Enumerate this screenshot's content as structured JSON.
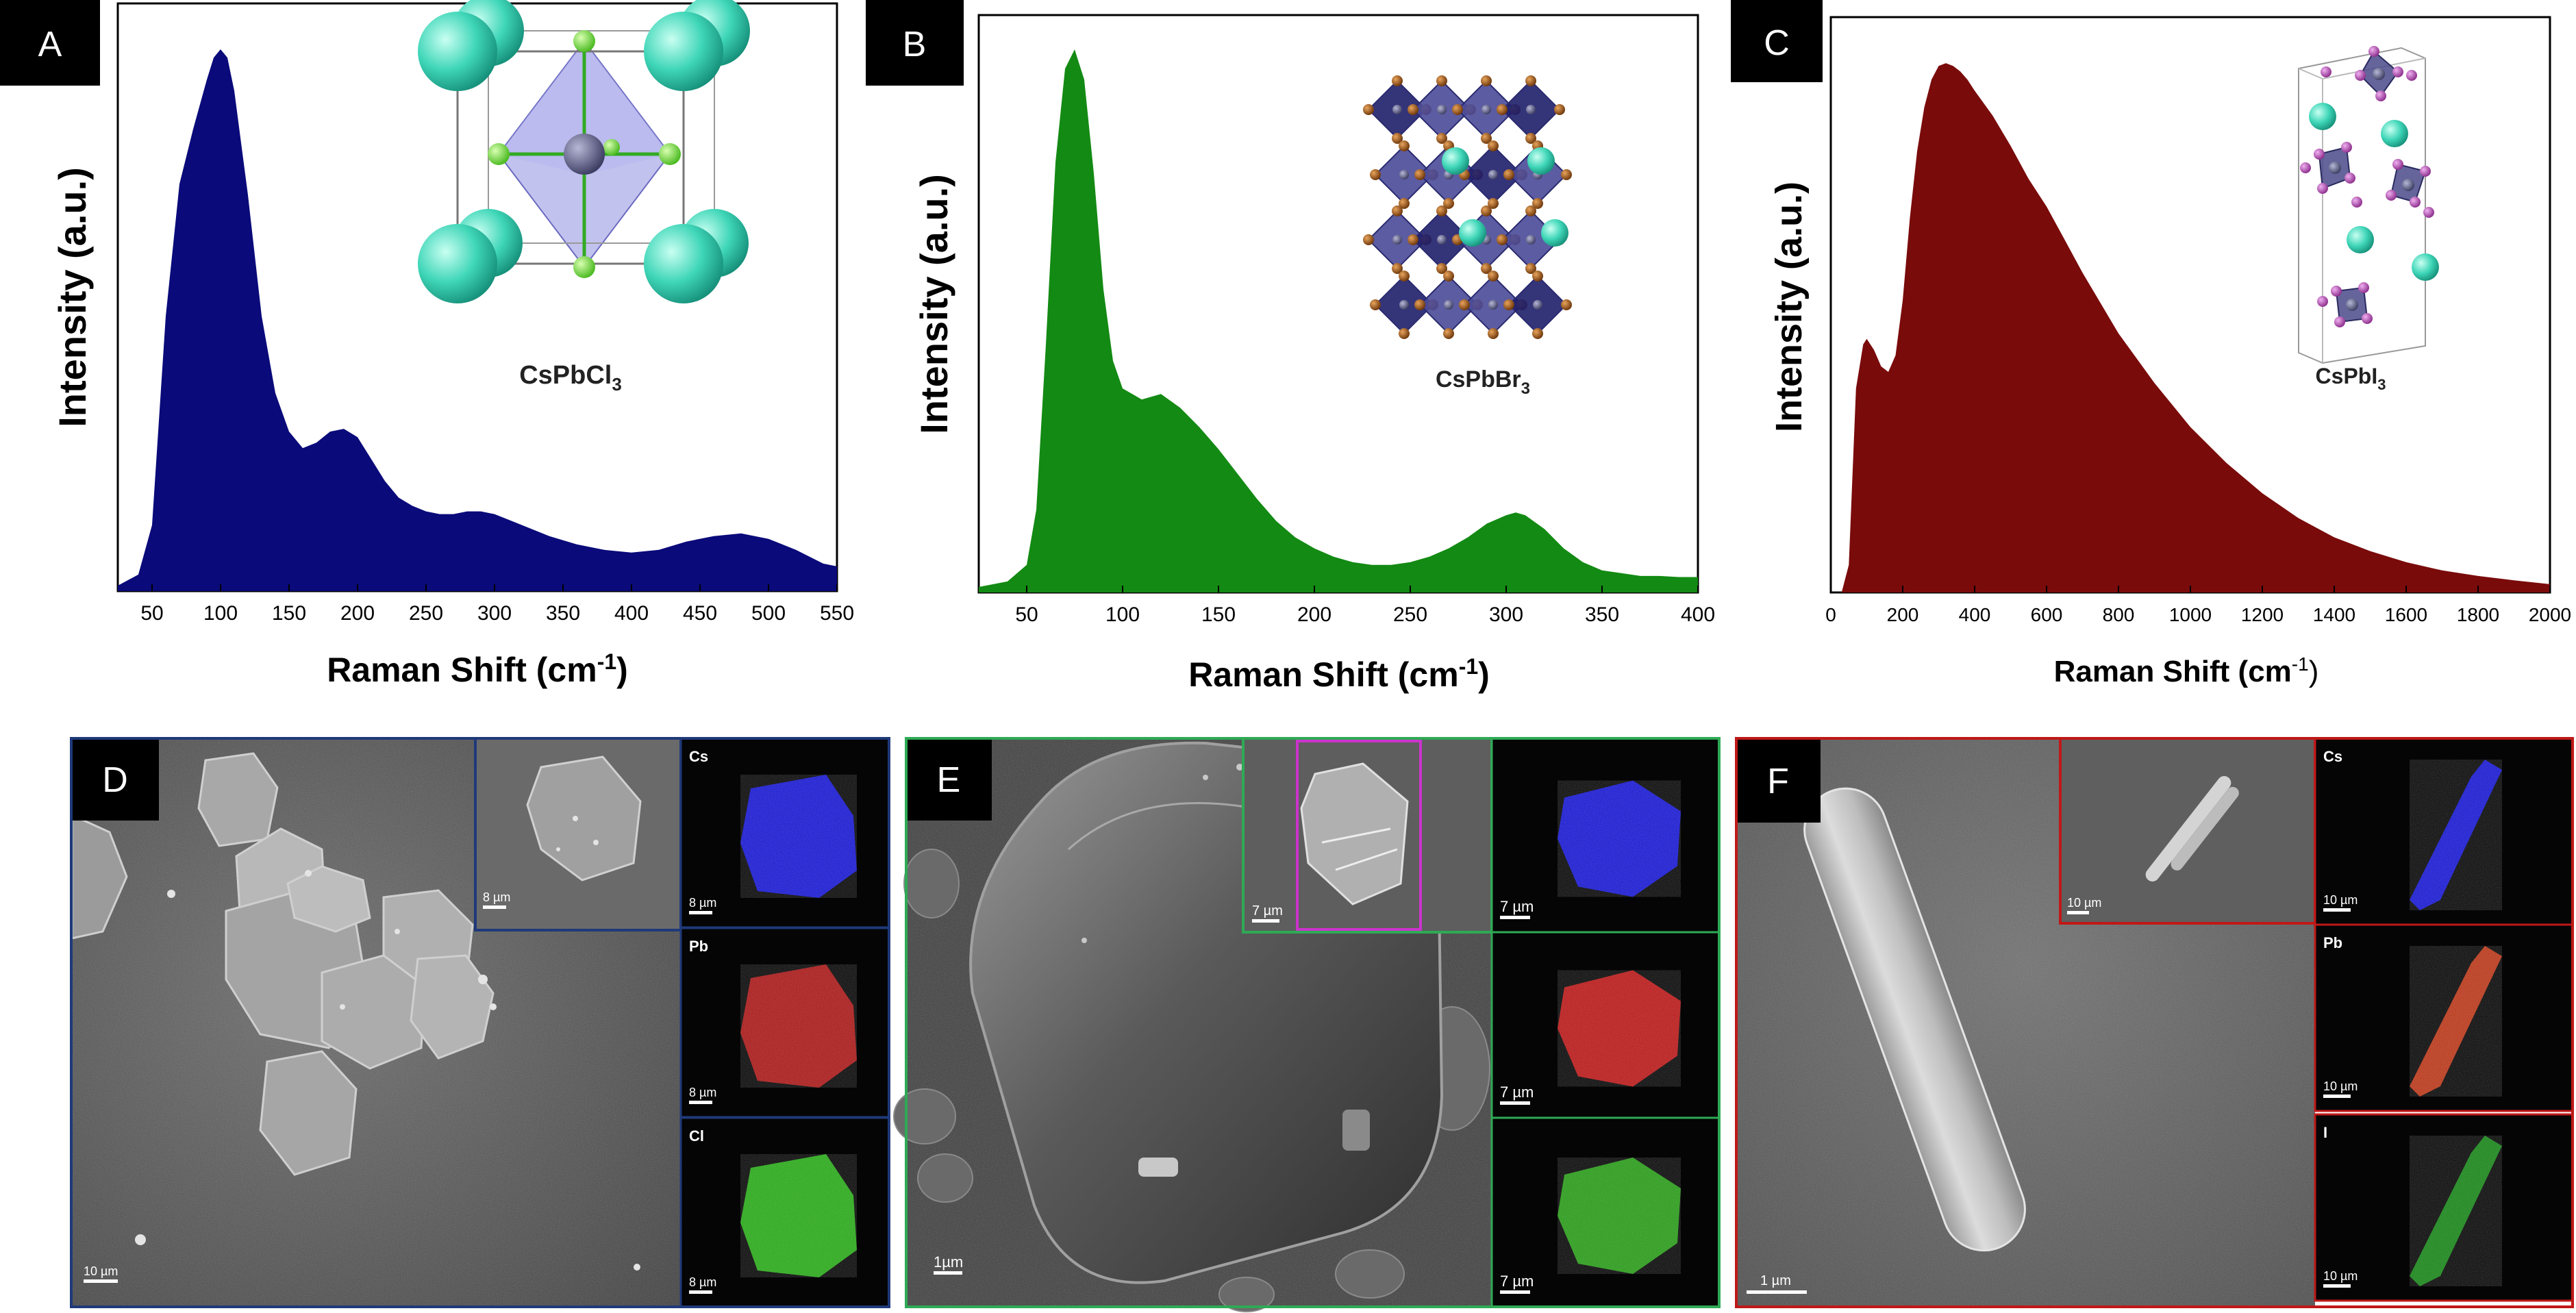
{
  "panels": {
    "A": {
      "letter": "A"
    },
    "B": {
      "letter": "B"
    },
    "C": {
      "letter": "C"
    },
    "D": {
      "letter": "D"
    },
    "E": {
      "letter": "E"
    },
    "F": {
      "letter": "F"
    }
  },
  "insets": {
    "A": {
      "formula_main": "CsPbCl",
      "formula_sub": "3"
    },
    "B": {
      "formula_main": "CsPbBr",
      "formula_sub": "3"
    },
    "C": {
      "formula_main": "CsPbI",
      "formula_sub": "3"
    }
  },
  "chart_data": [
    {
      "panel": "A",
      "type": "area",
      "color": "#0a0a7a",
      "ylabel": "Intensity (a.u.)",
      "xlabel_main": "Raman Shift (cm",
      "xlabel_sup": "-1",
      "xlabel_close": ")",
      "xlim": [
        25,
        550
      ],
      "ylim": [
        0,
        1
      ],
      "xticks": [
        50,
        100,
        150,
        200,
        250,
        300,
        350,
        400,
        450,
        500,
        550
      ],
      "x": [
        25,
        40,
        50,
        60,
        70,
        80,
        90,
        95,
        100,
        105,
        110,
        120,
        130,
        140,
        150,
        160,
        170,
        180,
        190,
        200,
        210,
        220,
        230,
        240,
        250,
        260,
        270,
        280,
        290,
        300,
        320,
        340,
        360,
        380,
        400,
        420,
        440,
        460,
        480,
        500,
        520,
        540,
        550
      ],
      "y": [
        0.01,
        0.03,
        0.12,
        0.5,
        0.74,
        0.84,
        0.93,
        0.97,
        0.985,
        0.97,
        0.91,
        0.72,
        0.5,
        0.36,
        0.29,
        0.26,
        0.27,
        0.29,
        0.295,
        0.28,
        0.24,
        0.2,
        0.17,
        0.155,
        0.145,
        0.14,
        0.14,
        0.145,
        0.145,
        0.14,
        0.12,
        0.1,
        0.085,
        0.075,
        0.07,
        0.075,
        0.09,
        0.1,
        0.105,
        0.095,
        0.075,
        0.05,
        0.045
      ]
    },
    {
      "panel": "B",
      "type": "area",
      "color": "#138a13",
      "ylabel": "Intensity (a.u.)",
      "xlabel_main": "Raman Shift (cm",
      "xlabel_sup": "-1",
      "xlabel_close": ")",
      "xlim": [
        25,
        400
      ],
      "ylim": [
        0,
        1
      ],
      "xticks": [
        50,
        100,
        150,
        200,
        250,
        300,
        350,
        400
      ],
      "x": [
        25,
        40,
        50,
        55,
        60,
        65,
        70,
        75,
        80,
        85,
        90,
        95,
        100,
        110,
        120,
        130,
        140,
        150,
        160,
        170,
        180,
        190,
        200,
        210,
        220,
        230,
        240,
        250,
        260,
        270,
        280,
        290,
        300,
        305,
        310,
        320,
        330,
        340,
        350,
        360,
        370,
        380,
        390,
        400
      ],
      "y": [
        0.01,
        0.02,
        0.05,
        0.15,
        0.45,
        0.78,
        0.95,
        0.985,
        0.93,
        0.76,
        0.55,
        0.42,
        0.37,
        0.35,
        0.36,
        0.335,
        0.3,
        0.26,
        0.215,
        0.17,
        0.13,
        0.1,
        0.08,
        0.065,
        0.055,
        0.05,
        0.05,
        0.055,
        0.065,
        0.08,
        0.1,
        0.125,
        0.14,
        0.145,
        0.14,
        0.115,
        0.08,
        0.055,
        0.04,
        0.035,
        0.03,
        0.03,
        0.028,
        0.028
      ]
    },
    {
      "panel": "C",
      "type": "area",
      "color": "#7a0b0b",
      "ylabel": "Intensity (a.u.)",
      "xlabel_main": "Raman Shift (cm",
      "xlabel_sup": "-1",
      "xlabel_close": ")",
      "xlim": [
        0,
        2000
      ],
      "ylim": [
        0,
        1
      ],
      "xticks": [
        0,
        200,
        400,
        600,
        800,
        1000,
        1200,
        1400,
        1600,
        1800,
        2000
      ],
      "x": [
        0,
        30,
        50,
        70,
        90,
        100,
        120,
        140,
        160,
        180,
        200,
        220,
        240,
        260,
        280,
        300,
        320,
        340,
        360,
        380,
        400,
        450,
        500,
        550,
        600,
        650,
        700,
        800,
        900,
        1000,
        1100,
        1200,
        1300,
        1400,
        1500,
        1600,
        1700,
        1800,
        1900,
        2000
      ],
      "y": [
        0.0,
        0.0,
        0.05,
        0.37,
        0.45,
        0.46,
        0.44,
        0.41,
        0.4,
        0.43,
        0.53,
        0.68,
        0.8,
        0.88,
        0.93,
        0.955,
        0.96,
        0.955,
        0.945,
        0.93,
        0.91,
        0.865,
        0.81,
        0.75,
        0.7,
        0.64,
        0.58,
        0.47,
        0.38,
        0.3,
        0.235,
        0.18,
        0.135,
        0.1,
        0.075,
        0.055,
        0.04,
        0.03,
        0.022,
        0.015
      ]
    }
  ],
  "sem": {
    "D": {
      "main_scale": "10 µm",
      "inset_scale": "8 µm",
      "maps": [
        {
          "element": "Cs",
          "scale": "8 µm",
          "color": "#1a1aff"
        },
        {
          "element": "Pb",
          "scale": "8 µm",
          "color": "#cc1a1a"
        },
        {
          "element": "Cl",
          "scale": "8 µm",
          "color": "#2ecc1a"
        }
      ]
    },
    "E": {
      "main_scale": "1µm",
      "inset_scale": "7 µm",
      "maps": [
        {
          "element": "",
          "scale": "7 µm",
          "color": "#1a1aff"
        },
        {
          "element": "",
          "scale": "7 µm",
          "color": "#e01a1a"
        },
        {
          "element": "",
          "scale": "7 µm",
          "color": "#2ebb1a"
        }
      ]
    },
    "F": {
      "main_scale": "1 µm",
      "inset_scale": "10 µm",
      "maps": [
        {
          "element": "Cs",
          "scale": "10 µm",
          "color": "#1a1aff"
        },
        {
          "element": "Pb",
          "scale": "10 µm",
          "color": "#e0401a"
        },
        {
          "element": "I",
          "scale": "10 µm",
          "color": "#1aa01a"
        }
      ]
    }
  },
  "colors": {
    "panel_D_border": "#1f3a7a",
    "panel_E_border": "#2eaa55",
    "panel_F_border": "#c01818",
    "inset_E_highlight": "#cc33cc"
  }
}
